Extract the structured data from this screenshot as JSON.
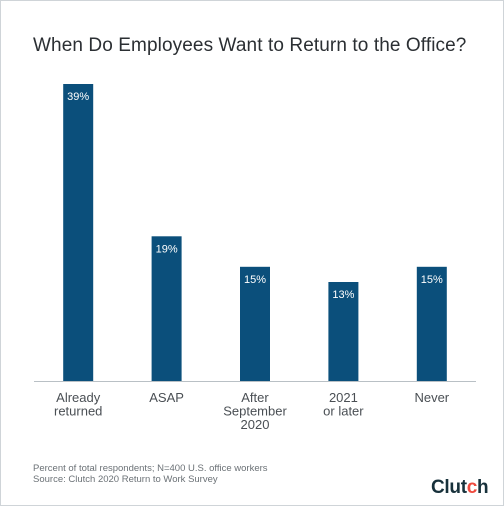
{
  "chart_data": {
    "type": "bar",
    "title": "When Do Employees Want to Return to the Office?",
    "categories": [
      [
        "Already",
        "returned"
      ],
      [
        "ASAP"
      ],
      [
        "After",
        "September",
        "2020"
      ],
      [
        "2021",
        "or later"
      ],
      [
        "Never"
      ]
    ],
    "values": [
      39,
      19,
      15,
      13,
      15
    ],
    "value_labels": [
      "39%",
      "19%",
      "15%",
      "13%",
      "15%"
    ],
    "ylim": [
      0,
      39
    ],
    "unit": "%",
    "bar_color": "#0b4f7b",
    "grid": false
  },
  "footnote": {
    "line1": "Percent of total respondents; N=400 U.S. office workers",
    "line2": "Source: Clutch 2020 Return to Work Survey"
  },
  "logo": {
    "text_main": "Clut",
    "text_accent": "c",
    "text_end": "h",
    "accent_color": "#ef4b3f"
  }
}
